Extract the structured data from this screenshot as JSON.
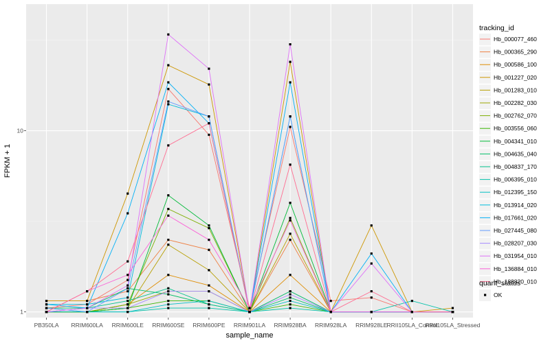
{
  "chart_data": {
    "type": "line",
    "xlabel": "sample_name",
    "ylabel": "FPKM + 1",
    "y_scale": "log10",
    "ylim": [
      0.93,
      50
    ],
    "y_ticks": [
      1,
      10
    ],
    "y_tick_labels": [
      "1 -",
      "10 -"
    ],
    "grid": true,
    "legend_placement": "right",
    "categories": [
      "PB350LA",
      "RRIM600LA",
      "RRIM600LE",
      "RRIM600SE",
      "RRIM600PE",
      "RRIM901LA",
      "RRIM928BA",
      "RRIM928LA",
      "RRIM928LE",
      "RRII105LA_Control",
      "RRII105LA_Stressed"
    ],
    "legend_title": "tracking_id",
    "series": [
      {
        "name": "Hb_000077_460",
        "color": "#F8766D",
        "values": [
          1.05,
          1.1,
          1.5,
          17.0,
          9.5,
          1.05,
          10.5,
          1.15,
          1.2,
          1.0,
          1.0
        ]
      },
      {
        "name": "Hb_000365_290",
        "color": "#EE8043",
        "values": [
          1.15,
          1.15,
          1.3,
          2.5,
          2.2,
          1.0,
          2.5,
          1.0,
          1.0,
          1.0,
          1.0
        ]
      },
      {
        "name": "Hb_000586_100",
        "color": "#DE8C00",
        "values": [
          1.0,
          1.0,
          1.1,
          1.6,
          1.4,
          1.0,
          1.6,
          1.0,
          1.0,
          1.0,
          1.0
        ]
      },
      {
        "name": "Hb_001227_020",
        "color": "#CD9600",
        "values": [
          1.15,
          1.15,
          4.5,
          23.0,
          18.0,
          1.0,
          24.0,
          1.0,
          3.0,
          1.0,
          1.05
        ]
      },
      {
        "name": "Hb_001283_010",
        "color": "#B79F00",
        "values": [
          1.0,
          1.0,
          1.05,
          2.35,
          1.7,
          1.0,
          2.7,
          1.0,
          1.0,
          1.0,
          1.0
        ]
      },
      {
        "name": "Hb_002282_030",
        "color": "#9CA700",
        "values": [
          1.0,
          1.0,
          1.1,
          1.3,
          1.3,
          1.0,
          1.3,
          1.0,
          1.0,
          1.0,
          1.0
        ]
      },
      {
        "name": "Hb_002762_070",
        "color": "#7CAE00",
        "values": [
          1.0,
          1.0,
          1.1,
          3.7,
          2.9,
          1.0,
          3.3,
          1.0,
          1.0,
          1.0,
          1.0
        ]
      },
      {
        "name": "Hb_003556_060",
        "color": "#39B600",
        "values": [
          1.0,
          1.0,
          1.05,
          1.15,
          1.15,
          1.0,
          1.1,
          1.0,
          1.0,
          1.0,
          1.0
        ]
      },
      {
        "name": "Hb_004341_010",
        "color": "#00BA38",
        "values": [
          1.0,
          1.0,
          1.05,
          4.4,
          3.0,
          1.0,
          4.0,
          1.0,
          1.0,
          1.0,
          1.0
        ]
      },
      {
        "name": "Hb_004635_040",
        "color": "#00BE67",
        "values": [
          1.05,
          1.05,
          1.35,
          1.25,
          1.1,
          1.0,
          1.2,
          1.0,
          1.0,
          1.0,
          1.0
        ]
      },
      {
        "name": "Hb_004837_170",
        "color": "#00C08B",
        "values": [
          1.0,
          1.05,
          1.15,
          1.35,
          1.1,
          1.0,
          1.3,
          1.0,
          1.0,
          1.0,
          1.0
        ]
      },
      {
        "name": "Hb_006395_010",
        "color": "#00C1A9",
        "values": [
          1.05,
          1.0,
          1.0,
          1.05,
          1.05,
          1.0,
          1.05,
          1.0,
          1.0,
          1.15,
          1.0
        ]
      },
      {
        "name": "Hb_012395_150",
        "color": "#00BFC4",
        "values": [
          1.0,
          1.0,
          1.0,
          1.1,
          1.15,
          1.0,
          1.15,
          1.0,
          1.0,
          1.0,
          1.0
        ]
      },
      {
        "name": "Hb_013914_020",
        "color": "#00BBDB",
        "values": [
          1.1,
          1.1,
          1.2,
          14.0,
          12.0,
          1.0,
          12.0,
          1.0,
          1.0,
          1.0,
          1.0
        ]
      },
      {
        "name": "Hb_017661_020",
        "color": "#00B0F6",
        "values": [
          1.1,
          1.05,
          3.5,
          18.5,
          11.0,
          1.0,
          18.5,
          1.0,
          2.1,
          1.0,
          1.0
        ]
      },
      {
        "name": "Hb_027445_080",
        "color": "#619CFF",
        "values": [
          1.05,
          1.0,
          1.35,
          14.5,
          12.0,
          1.0,
          12.0,
          1.0,
          1.0,
          1.0,
          1.0
        ]
      },
      {
        "name": "Hb_028207_030",
        "color": "#A58AFF",
        "values": [
          1.0,
          1.05,
          1.05,
          1.3,
          1.3,
          1.0,
          1.25,
          1.0,
          1.0,
          1.0,
          1.0
        ]
      },
      {
        "name": "Hb_031954_010",
        "color": "#DF70F8",
        "values": [
          1.0,
          1.05,
          1.4,
          34.0,
          22.0,
          1.0,
          30.0,
          1.0,
          1.85,
          1.0,
          1.0
        ]
      },
      {
        "name": "Hb_136884_010",
        "color": "#FB61D7",
        "values": [
          1.0,
          1.3,
          1.6,
          3.4,
          2.5,
          1.05,
          3.2,
          1.0,
          1.0,
          1.0,
          1.0
        ]
      },
      {
        "name": "Hb_183820_010",
        "color": "#FF6C91",
        "values": [
          1.0,
          1.3,
          1.9,
          8.3,
          11.0,
          1.0,
          6.5,
          1.0,
          1.3,
          1.0,
          1.0
        ]
      }
    ],
    "shape_legend_title": "quant_status",
    "shape_legend_entries": [
      "OK"
    ]
  }
}
